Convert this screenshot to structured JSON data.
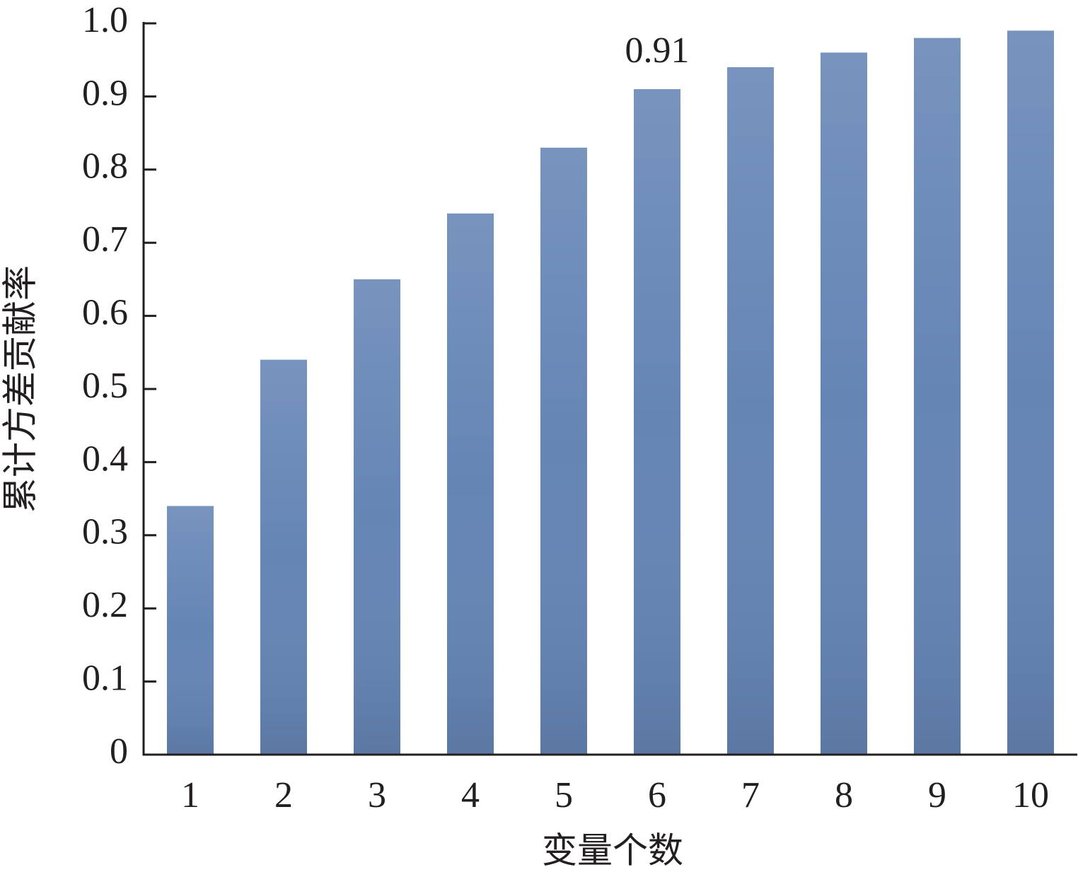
{
  "chart_data": {
    "type": "bar",
    "x_label": "变量个数",
    "y_label": "累计方差贡献率",
    "categories": [
      "1",
      "2",
      "3",
      "4",
      "5",
      "6",
      "7",
      "8",
      "9",
      "10"
    ],
    "values": [
      0.34,
      0.54,
      0.65,
      0.74,
      0.83,
      0.91,
      0.94,
      0.96,
      0.98,
      0.99
    ],
    "value_labels": [
      null,
      null,
      null,
      null,
      null,
      "0.91",
      null,
      null,
      null,
      null
    ],
    "color": "#6585b5",
    "ylim": [
      0,
      1
    ],
    "yticks": [
      0,
      0.1,
      0.2,
      0.3,
      0.4,
      0.5,
      0.6,
      0.7,
      0.8,
      0.9,
      {
        "value": 1,
        "label": "1.0"
      }
    ],
    "grid": false
  }
}
